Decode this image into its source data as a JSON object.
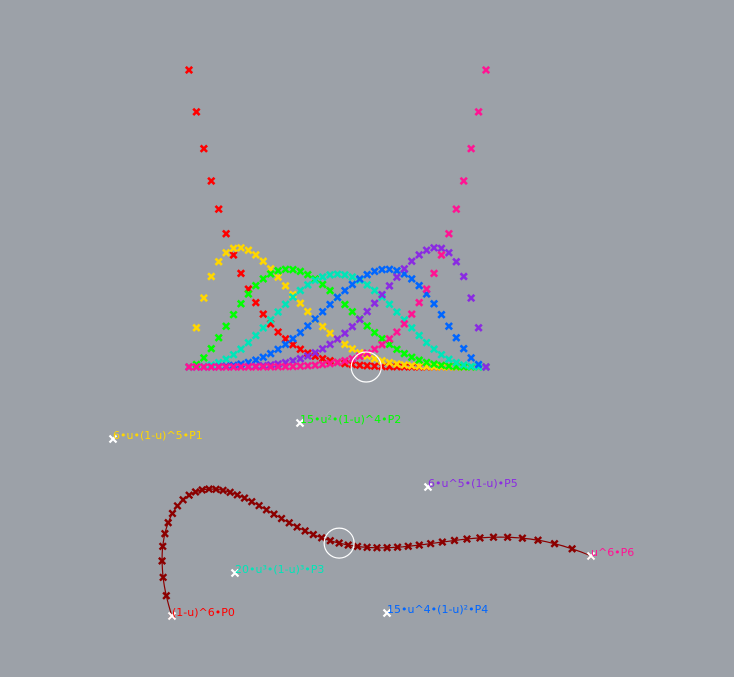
{
  "background": "#9ca1a8",
  "basis_chart": {
    "type": "line",
    "degree": 6,
    "samples": 41,
    "u_range": [
      0,
      1
    ],
    "y_range": [
      0,
      1
    ],
    "series": [
      {
        "color": "#ff0000"
      },
      {
        "color": "#ffd700"
      },
      {
        "color": "#00ff00"
      },
      {
        "color": "#00e5b8"
      },
      {
        "color": "#0066ff"
      },
      {
        "color": "#8a2be2"
      },
      {
        "color": "#ff1493"
      }
    ],
    "current_u": 0.6
  },
  "control_points": [
    {
      "label": "(1-u)^6•P0",
      "color": "#ff0000"
    },
    {
      "label": "6•u•(1-u)^5•P1",
      "color": "#ffd700"
    },
    {
      "label": "15•u²•(1-u)^4•P2",
      "color": "#00ff00"
    },
    {
      "label": "20•u³•(1-u)³•P3",
      "color": "#00e5b8"
    },
    {
      "label": "15•u^4•(1-u)²•P4",
      "color": "#0066ff"
    },
    {
      "label": "6•u^5•(1-u)•P5",
      "color": "#8a2be2"
    },
    {
      "label": "u^6•P6",
      "color": "#ff1493"
    }
  ],
  "curve": {
    "color": "#8b0000",
    "samples": 51
  }
}
